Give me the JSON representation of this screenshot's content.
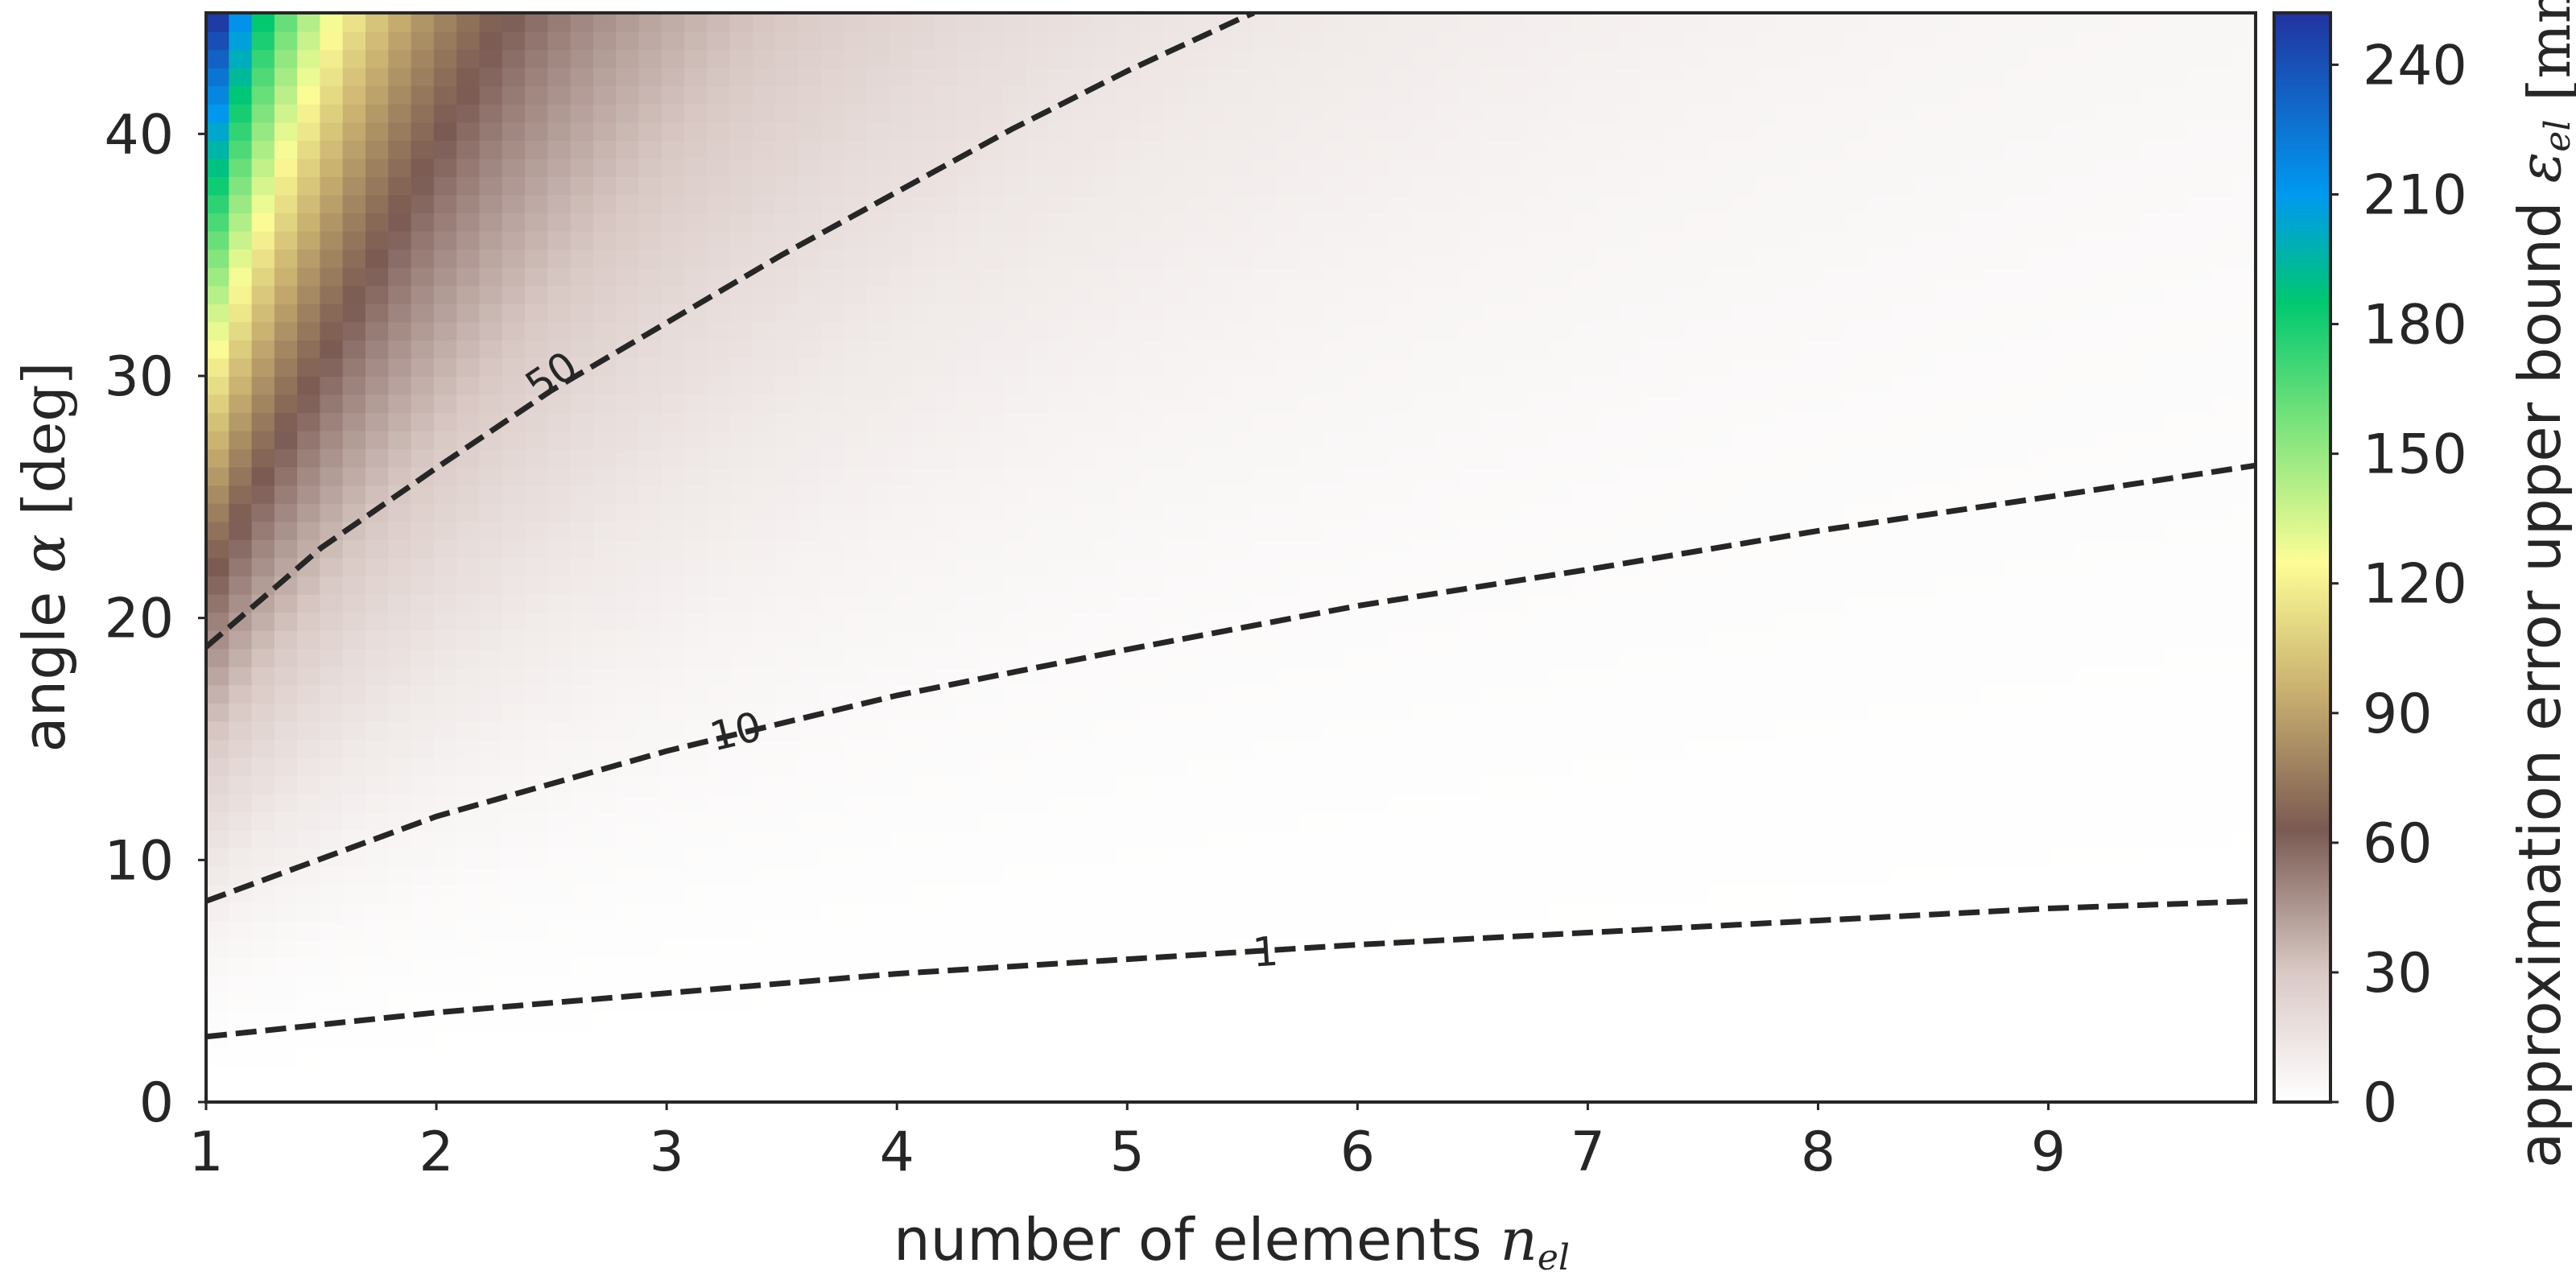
{
  "chart_data": {
    "type": "heatmap",
    "xlabel": "number of elements",
    "xlabel_symbol": "n",
    "xlabel_sub": "el",
    "ylabel": "angle",
    "ylabel_symbol": "α",
    "ylabel_unit": "[deg]",
    "xlim": [
      1,
      9.9
    ],
    "ylim": [
      0,
      45
    ],
    "xticks": [
      1,
      2,
      3,
      4,
      5,
      6,
      7,
      8,
      9
    ],
    "yticks": [
      0,
      10,
      20,
      30,
      40
    ],
    "colorbar": {
      "label": "approximation error upper bound",
      "symbol": "ε",
      "symbol_sub": "el",
      "unit": "[mm]",
      "range": [
        0,
        252
      ],
      "ticks": [
        0,
        30,
        60,
        90,
        120,
        150,
        180,
        210,
        240
      ],
      "colormap_stops": [
        {
          "v": 0,
          "color": "#ffffff"
        },
        {
          "v": 30,
          "color": "#d9c9c5"
        },
        {
          "v": 63,
          "color": "#7a5a52"
        },
        {
          "v": 95,
          "color": "#c9b070"
        },
        {
          "v": 125,
          "color": "#fdfd96"
        },
        {
          "v": 160,
          "color": "#6ee07a"
        },
        {
          "v": 185,
          "color": "#00c870"
        },
        {
          "v": 210,
          "color": "#0099f0"
        },
        {
          "v": 252,
          "color": "#2233a0"
        }
      ]
    },
    "contours": [
      {
        "level": 1,
        "label": "1",
        "label_at": [
          5.6,
          6.2
        ],
        "points": [
          [
            1,
            2.7
          ],
          [
            2,
            3.7
          ],
          [
            3,
            4.5
          ],
          [
            4,
            5.3
          ],
          [
            5,
            5.9
          ],
          [
            6,
            6.5
          ],
          [
            7,
            7.0
          ],
          [
            8,
            7.5
          ],
          [
            9,
            8.0
          ],
          [
            9.9,
            8.3
          ]
        ]
      },
      {
        "level": 10,
        "label": "10",
        "label_at": [
          3.3,
          15.3
        ],
        "points": [
          [
            1,
            8.3
          ],
          [
            2,
            11.8
          ],
          [
            3,
            14.5
          ],
          [
            4,
            16.8
          ],
          [
            5,
            18.7
          ],
          [
            6,
            20.5
          ],
          [
            7,
            22.0
          ],
          [
            8,
            23.6
          ],
          [
            9,
            25.0
          ],
          [
            9.9,
            26.3
          ]
        ]
      },
      {
        "level": 50,
        "label": "50",
        "label_at": [
          2.5,
          30.0
        ],
        "points": [
          [
            1,
            18.8
          ],
          [
            1.5,
            22.9
          ],
          [
            2,
            26.2
          ],
          [
            2.5,
            29.4
          ],
          [
            3,
            32.2
          ],
          [
            3.5,
            35.0
          ],
          [
            4,
            37.6
          ],
          [
            4.5,
            40.2
          ],
          [
            5,
            42.6
          ],
          [
            5.5,
            44.8
          ],
          [
            5.55,
            45
          ]
        ]
      }
    ]
  }
}
